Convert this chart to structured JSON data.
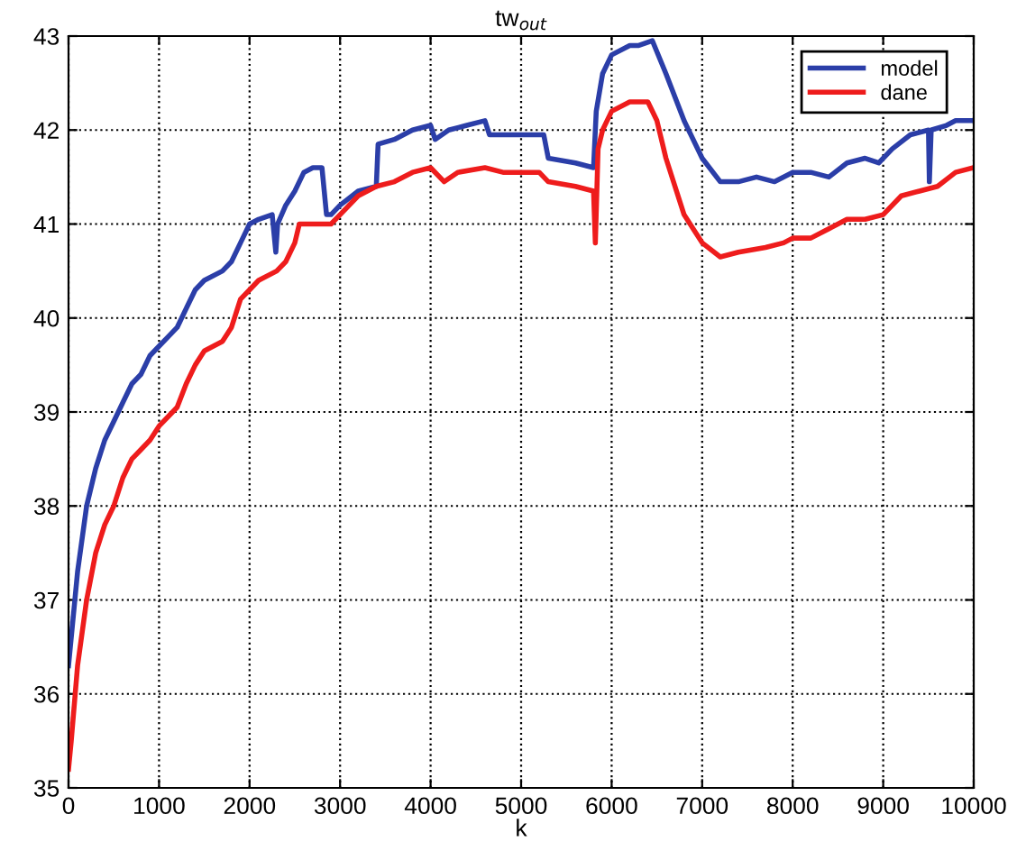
{
  "chart_data": {
    "type": "line",
    "title": "tw$_{out}$",
    "xlabel": "k",
    "xlim": [
      0,
      10000
    ],
    "xticks": [
      0,
      1000,
      2000,
      3000,
      4000,
      5000,
      6000,
      7000,
      8000,
      9000,
      10000
    ],
    "ylim": [
      35,
      43
    ],
    "yticks": [
      35,
      36,
      37,
      38,
      39,
      40,
      41,
      42,
      43
    ],
    "grid": true,
    "legend": "top right",
    "line_style": "solid",
    "marker": "none",
    "series": [
      {
        "name": "model",
        "color": "#2b3ea8",
        "x": [
          0,
          30,
          100,
          200,
          300,
          400,
          500,
          600,
          700,
          800,
          900,
          1000,
          1100,
          1200,
          1300,
          1400,
          1500,
          1700,
          1800,
          1900,
          2000,
          2100,
          2250,
          2290,
          2310,
          2400,
          2500,
          2600,
          2700,
          2800,
          2850,
          2900,
          3000,
          3200,
          3400,
          3420,
          3600,
          3800,
          4000,
          4050,
          4200,
          4400,
          4600,
          4650,
          5000,
          5250,
          5300,
          5600,
          5800,
          5830,
          5900,
          6000,
          6200,
          6300,
          6450,
          6600,
          6800,
          7000,
          7200,
          7400,
          7600,
          7800,
          8000,
          8200,
          8400,
          8600,
          8800,
          8950,
          9100,
          9300,
          9500,
          9510,
          9530,
          9700,
          9800,
          10000
        ],
        "values": [
          36.3,
          36.6,
          37.3,
          38.0,
          38.4,
          38.7,
          38.9,
          39.1,
          39.3,
          39.4,
          39.6,
          39.7,
          39.8,
          39.9,
          40.1,
          40.3,
          40.4,
          40.5,
          40.6,
          40.8,
          41.0,
          41.05,
          41.1,
          40.7,
          41.0,
          41.2,
          41.35,
          41.55,
          41.6,
          41.6,
          41.1,
          41.1,
          41.2,
          41.35,
          41.4,
          41.85,
          41.9,
          42.0,
          42.05,
          41.9,
          42.0,
          42.05,
          42.1,
          41.95,
          41.95,
          41.95,
          41.7,
          41.65,
          41.6,
          42.2,
          42.6,
          42.8,
          42.9,
          42.9,
          42.95,
          42.6,
          42.1,
          41.7,
          41.45,
          41.45,
          41.5,
          41.45,
          41.55,
          41.55,
          41.5,
          41.65,
          41.7,
          41.65,
          41.8,
          41.95,
          42.0,
          41.45,
          42.0,
          42.05,
          42.1,
          42.1
        ]
      },
      {
        "name": "dane",
        "color": "#ee1c1c",
        "x": [
          0,
          30,
          100,
          200,
          300,
          400,
          500,
          600,
          700,
          800,
          900,
          1000,
          1100,
          1200,
          1300,
          1400,
          1500,
          1700,
          1800,
          1900,
          2000,
          2100,
          2300,
          2400,
          2500,
          2550,
          2700,
          2900,
          3000,
          3200,
          3400,
          3600,
          3800,
          4000,
          4150,
          4300,
          4600,
          4800,
          5200,
          5300,
          5600,
          5800,
          5820,
          5850,
          5900,
          6000,
          6200,
          6400,
          6500,
          6600,
          6800,
          7000,
          7200,
          7400,
          7700,
          7900,
          8000,
          8200,
          8400,
          8600,
          8800,
          9000,
          9200,
          9400,
          9600,
          9800,
          10000
        ],
        "values": [
          35.2,
          35.5,
          36.3,
          37.0,
          37.5,
          37.8,
          38.0,
          38.3,
          38.5,
          38.6,
          38.7,
          38.85,
          38.95,
          39.05,
          39.3,
          39.5,
          39.65,
          39.75,
          39.9,
          40.2,
          40.3,
          40.4,
          40.5,
          40.6,
          40.8,
          41.0,
          41.0,
          41.0,
          41.1,
          41.3,
          41.4,
          41.45,
          41.55,
          41.6,
          41.45,
          41.55,
          41.6,
          41.55,
          41.55,
          41.45,
          41.4,
          41.35,
          40.8,
          41.8,
          42.0,
          42.2,
          42.3,
          42.3,
          42.1,
          41.7,
          41.1,
          40.8,
          40.65,
          40.7,
          40.75,
          40.8,
          40.85,
          40.85,
          40.95,
          41.05,
          41.05,
          41.1,
          41.3,
          41.35,
          41.4,
          41.55,
          41.6
        ]
      }
    ]
  }
}
